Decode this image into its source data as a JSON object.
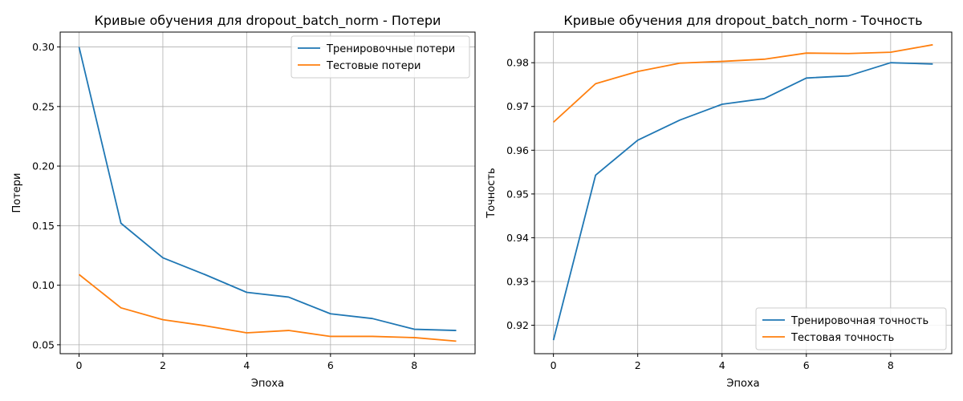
{
  "chart_data": [
    {
      "type": "line",
      "title": "Кривые обучения для dropout_batch_norm - Потери",
      "xlabel": "Эпоха",
      "ylabel": "Потери",
      "xlim": [
        -0.45,
        9.45
      ],
      "ylim": [
        0.0425,
        0.3125
      ],
      "xticks": [
        0,
        2,
        4,
        6,
        8
      ],
      "yticks": [
        0.05,
        0.1,
        0.15,
        0.2,
        0.25,
        0.3
      ],
      "ytick_labels": [
        "0.05",
        "0.10",
        "0.15",
        "0.20",
        "0.25",
        "0.30"
      ],
      "grid": true,
      "legend_position": "top-right",
      "x": [
        0,
        1,
        2,
        3,
        4,
        5,
        6,
        7,
        8,
        9
      ],
      "series": [
        {
          "name": "Тренировочные потери",
          "color": "#1f77b4",
          "values": [
            0.3,
            0.152,
            0.123,
            0.109,
            0.094,
            0.09,
            0.076,
            0.072,
            0.063,
            0.062
          ]
        },
        {
          "name": "Тестовые потери",
          "color": "#ff7f0e",
          "values": [
            0.109,
            0.081,
            0.071,
            0.066,
            0.06,
            0.062,
            0.057,
            0.057,
            0.056,
            0.053
          ]
        }
      ]
    },
    {
      "type": "line",
      "title": "Кривые обучения для dropout_batch_norm - Точность",
      "xlabel": "Эпоха",
      "ylabel": "Точность",
      "xlim": [
        -0.45,
        9.45
      ],
      "ylim": [
        0.9135,
        0.987
      ],
      "xticks": [
        0,
        2,
        4,
        6,
        8
      ],
      "yticks": [
        0.92,
        0.93,
        0.94,
        0.95,
        0.96,
        0.97,
        0.98
      ],
      "ytick_labels": [
        "0.92",
        "0.93",
        "0.94",
        "0.95",
        "0.96",
        "0.97",
        "0.98"
      ],
      "grid": true,
      "legend_position": "bottom-right",
      "x": [
        0,
        1,
        2,
        3,
        4,
        5,
        6,
        7,
        8,
        9
      ],
      "series": [
        {
          "name": "Тренировочная точность",
          "color": "#1f77b4",
          "values": [
            0.9166,
            0.9543,
            0.9623,
            0.9669,
            0.9705,
            0.9718,
            0.9765,
            0.977,
            0.98,
            0.9797
          ]
        },
        {
          "name": "Тестовая точность",
          "color": "#ff7f0e",
          "values": [
            0.9664,
            0.9752,
            0.978,
            0.9799,
            0.9803,
            0.9808,
            0.9822,
            0.9821,
            0.9824,
            0.9841
          ]
        }
      ]
    }
  ]
}
